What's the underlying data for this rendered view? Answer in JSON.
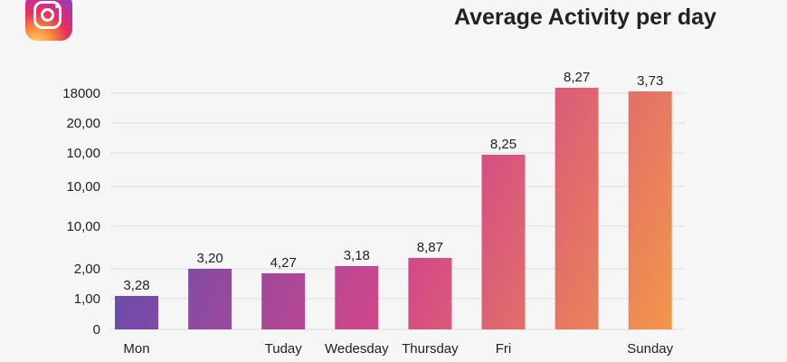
{
  "chart_data": {
    "type": "bar",
    "title": "Average Activity per day",
    "categories": [
      "Mon",
      "",
      "Tuday",
      "Wedesday",
      "Thursday",
      "Fri",
      "",
      "Sunday"
    ],
    "data_labels": [
      "3,28",
      "3,20",
      "4,27",
      "3,18",
      "8,87",
      "8,25",
      "8,27",
      "3,73"
    ],
    "y_tick_labels": [
      "0",
      "1,00",
      "2,00",
      "10,00",
      "10,00",
      "10,00",
      "20,00",
      "18000"
    ],
    "grid": true,
    "legend": "none",
    "colors": {
      "start": "#4b4db6",
      "middle": "#d2468a",
      "end": "#f2964a"
    }
  },
  "logo": "instagram-logo"
}
